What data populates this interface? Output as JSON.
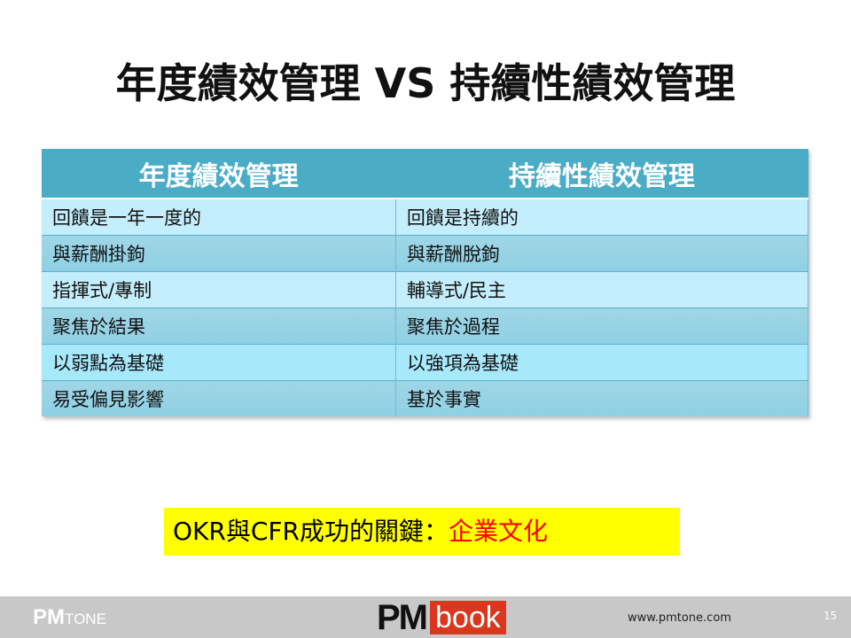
{
  "title": "年度績效管理 VS 持續性績效管理",
  "table": {
    "headers": [
      "年度績效管理",
      "持續性績效管理"
    ],
    "rows": [
      [
        "回饋是一年一度的",
        "回饋是持續的"
      ],
      [
        "與薪酬掛鉤",
        "與薪酬脫鉤"
      ],
      [
        "指揮式/專制",
        "輔導式/民主"
      ],
      [
        "聚焦於結果",
        "聚焦於過程"
      ],
      [
        "以弱點為基礎",
        "以強項為基礎"
      ],
      [
        "易受偏見影響",
        "基於事實"
      ]
    ]
  },
  "key": {
    "prefix": "OKR與CFR成功的關鍵：",
    "highlight": "企業文化"
  },
  "footer": {
    "logo_left": "PMTONE",
    "logo_center": "PM book",
    "url": "www.pmtone.com",
    "page": "15"
  },
  "colors": {
    "header": "#4BACC6",
    "highlight_bg": "#FFFF00",
    "highlight_text": "#FF0000"
  }
}
